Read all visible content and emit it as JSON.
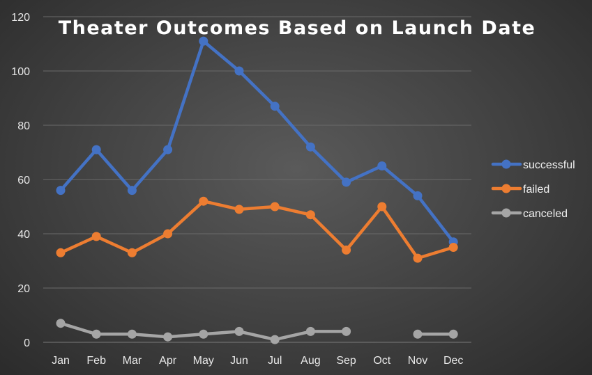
{
  "chart_data": {
    "type": "line",
    "title": "Theater Outcomes Based on Launch Date",
    "xlabel": "",
    "ylabel": "",
    "categories": [
      "Jan",
      "Feb",
      "Mar",
      "Apr",
      "May",
      "Jun",
      "Jul",
      "Aug",
      "Sep",
      "Oct",
      "Nov",
      "Dec"
    ],
    "ylim": [
      0,
      120
    ],
    "yticks": [
      0,
      20,
      40,
      60,
      80,
      100,
      120
    ],
    "grid": true,
    "legend_position": "right",
    "series": [
      {
        "name": "successful",
        "color": "#4472c4",
        "values": [
          56,
          71,
          56,
          71,
          111,
          100,
          87,
          72,
          59,
          65,
          54,
          37
        ]
      },
      {
        "name": "failed",
        "color": "#ed7d31",
        "values": [
          33,
          39,
          33,
          40,
          52,
          49,
          50,
          47,
          34,
          50,
          31,
          35
        ]
      },
      {
        "name": "canceled",
        "color": "#a5a5a5",
        "values": [
          7,
          3,
          3,
          2,
          3,
          4,
          1,
          4,
          4,
          null,
          3,
          3
        ]
      }
    ]
  }
}
